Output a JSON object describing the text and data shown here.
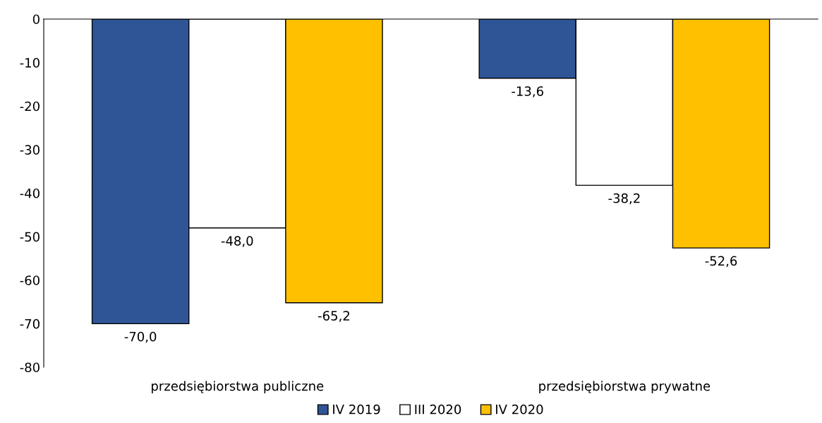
{
  "chart_data": {
    "type": "bar",
    "categories": [
      "przedsiębiorstwa publiczne",
      "przedsiębiorstwa prywatne"
    ],
    "series": [
      {
        "name": "IV 2019",
        "color": "#2f5597",
        "values": [
          -70.0,
          -13.6
        ],
        "value_labels": [
          "-70,0",
          "-13,6"
        ]
      },
      {
        "name": "III 2020",
        "color": "#ffffff",
        "values": [
          -48.0,
          -38.2
        ],
        "value_labels": [
          "-48,0",
          "-38,2"
        ]
      },
      {
        "name": "IV 2020",
        "color": "#ffc000",
        "values": [
          -65.2,
          -52.6
        ],
        "value_labels": [
          "-65,2",
          "-52,6"
        ]
      }
    ],
    "ylim": [
      -80,
      0
    ],
    "yticks": [
      0,
      -10,
      -20,
      -30,
      -40,
      -50,
      -60,
      -70,
      -80
    ],
    "grid": false,
    "legend": "bottom"
  }
}
